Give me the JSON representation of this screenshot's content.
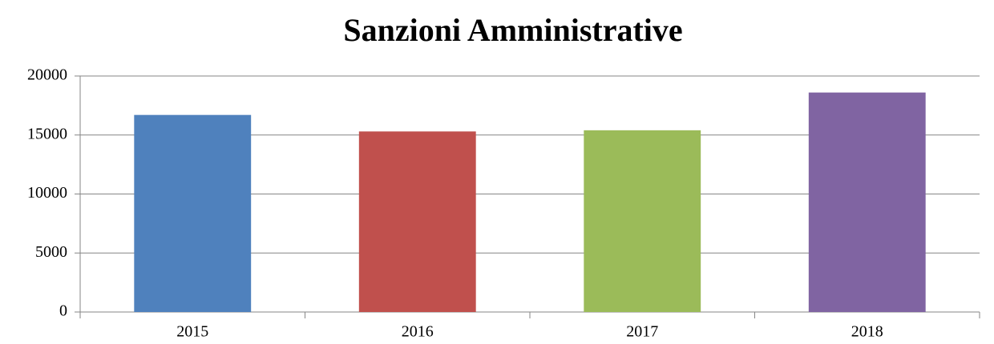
{
  "chart_data": {
    "type": "bar",
    "title": "Sanzioni Amministrative",
    "categories": [
      "2015",
      "2016",
      "2017",
      "2018"
    ],
    "values": [
      16700,
      15300,
      15400,
      18600
    ],
    "colors": [
      "#4f81bd",
      "#c0504d",
      "#9bbb59",
      "#8064a2"
    ],
    "ylim": [
      0,
      20000
    ],
    "yticks": [
      0,
      5000,
      10000,
      15000,
      20000
    ],
    "grid": true
  }
}
